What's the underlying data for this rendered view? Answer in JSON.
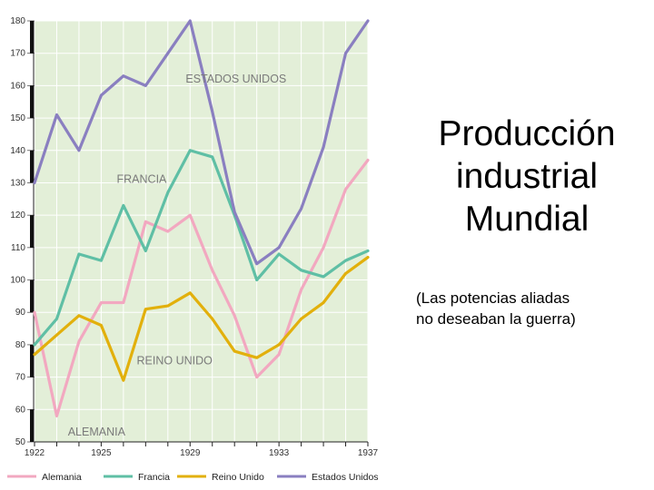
{
  "slide": {
    "title_lines": [
      "Producción",
      "industrial",
      "Mundial"
    ],
    "note_lines": [
      "(Las potencias aliadas",
      "no deseaban la guerra)"
    ]
  },
  "colors": {
    "plot_background": "#e3efd8",
    "grid": "#ffffff",
    "axis": "#000000",
    "label_text": "#7a7a7a"
  },
  "chart_data": {
    "type": "line",
    "ylim": [
      50,
      180
    ],
    "xlim": [
      1922,
      1937
    ],
    "y_ticks": [
      50,
      60,
      70,
      80,
      90,
      100,
      110,
      120,
      130,
      140,
      150,
      160,
      170,
      180
    ],
    "x_ticks": [
      1922,
      1925,
      1929,
      1933,
      1937
    ],
    "grid": true,
    "legend_position": "bottom",
    "series": [
      {
        "name": "Alemania",
        "color": "#f2a8c0",
        "x": [
          1922,
          1923,
          1924,
          1925,
          1926,
          1927,
          1928,
          1929,
          1930,
          1931,
          1932,
          1933,
          1934,
          1935,
          1936,
          1937
        ],
        "y": [
          90,
          58,
          81,
          93,
          93,
          118,
          115,
          120,
          103,
          89,
          70,
          77,
          97,
          110,
          128,
          137
        ]
      },
      {
        "name": "Francia",
        "color": "#5fbfa5",
        "x": [
          1922,
          1923,
          1924,
          1925,
          1926,
          1927,
          1928,
          1929,
          1930,
          1931,
          1932,
          1933,
          1934,
          1935,
          1936,
          1937
        ],
        "y": [
          80,
          88,
          108,
          106,
          123,
          109,
          127,
          140,
          138,
          120,
          100,
          108,
          103,
          101,
          106,
          109
        ]
      },
      {
        "name": "Reino Unido",
        "color": "#e2b00c",
        "x": [
          1922,
          1923,
          1924,
          1925,
          1926,
          1927,
          1928,
          1929,
          1930,
          1931,
          1932,
          1933,
          1934,
          1935,
          1936,
          1937
        ],
        "y": [
          77,
          83,
          89,
          86,
          69,
          91,
          92,
          96,
          88,
          78,
          76,
          80,
          88,
          93,
          102,
          107
        ]
      },
      {
        "name": "Estados Unidos",
        "color": "#8a7fc0",
        "x": [
          1922,
          1923,
          1924,
          1925,
          1926,
          1927,
          1928,
          1929,
          1930,
          1931,
          1932,
          1933,
          1934,
          1935,
          1936,
          1937
        ],
        "y": [
          130,
          151,
          140,
          157,
          163,
          160,
          170,
          180,
          152,
          121,
          105,
          110,
          122,
          141,
          170,
          180
        ]
      }
    ],
    "annotations": [
      {
        "text": "ESTADOS UNIDOS",
        "x": 1928.8,
        "y": 161
      },
      {
        "text": "FRANCIA",
        "x": 1925.7,
        "y": 130
      },
      {
        "text": "REINO UNIDO",
        "x": 1926.6,
        "y": 74
      },
      {
        "text": "ALEMANIA",
        "x": 1923.5,
        "y": 52
      }
    ]
  }
}
